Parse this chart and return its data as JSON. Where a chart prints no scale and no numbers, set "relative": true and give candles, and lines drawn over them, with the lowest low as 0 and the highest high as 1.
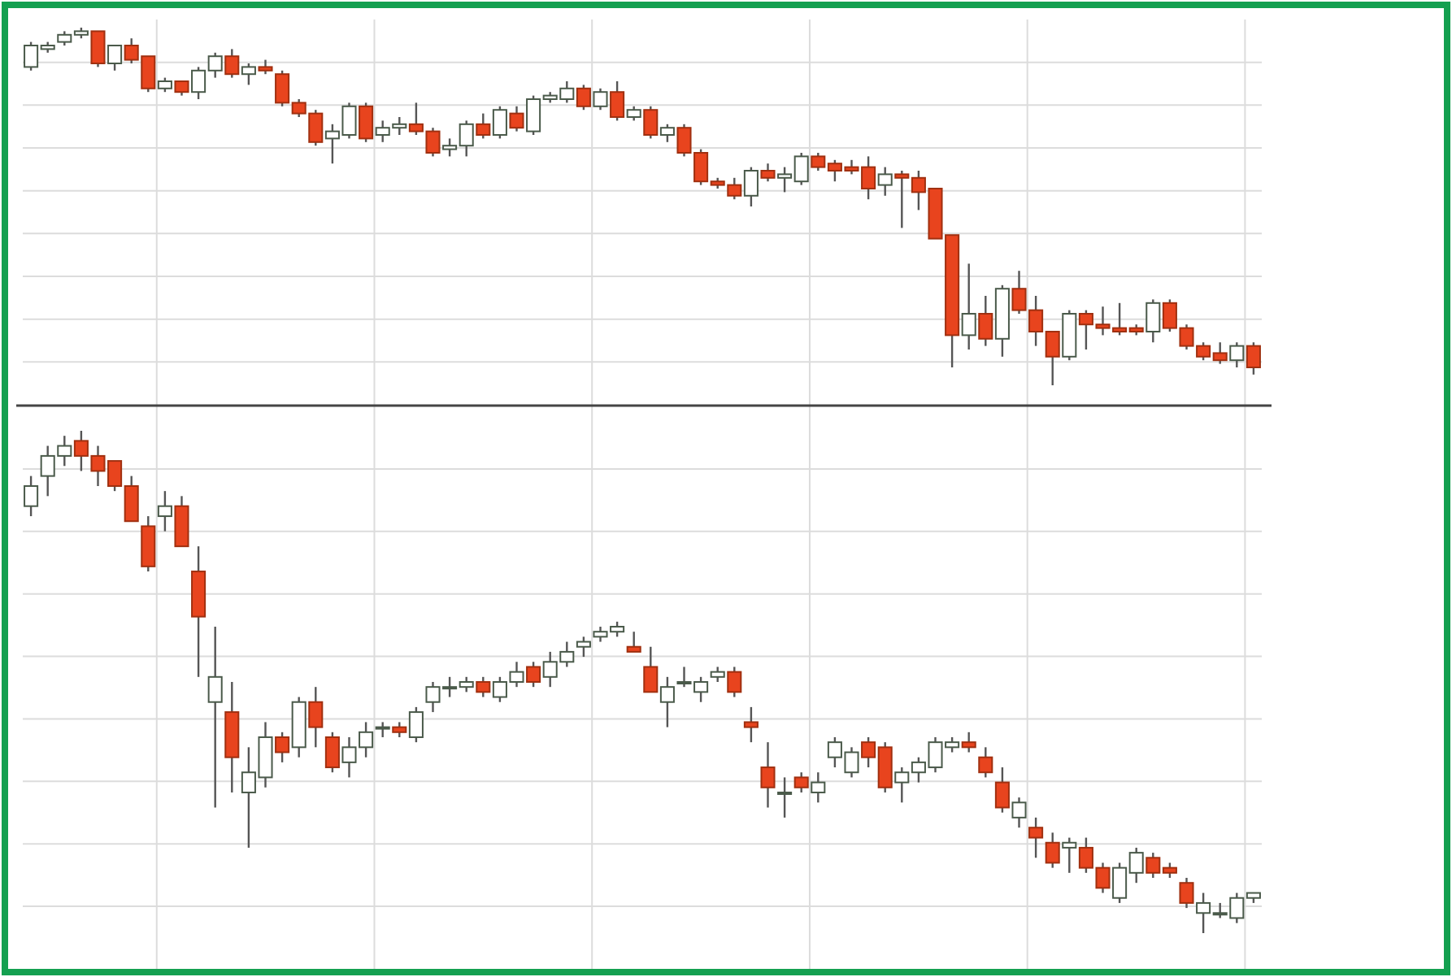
{
  "chart_data": [
    {
      "type": "candlestick",
      "relative": true,
      "grid": true,
      "categories": [
        null,
        null,
        null,
        null,
        null,
        null,
        null,
        null,
        null,
        null,
        null,
        null,
        null,
        null,
        null,
        null,
        null,
        null,
        null,
        null,
        null,
        null,
        null,
        null,
        null,
        null,
        null,
        null,
        null,
        null,
        null,
        null,
        null,
        null,
        null,
        null,
        null,
        null,
        null,
        null,
        null,
        null,
        null,
        null,
        null,
        null,
        null,
        null,
        null,
        null,
        null,
        null,
        null,
        null,
        null,
        null,
        null,
        null,
        null,
        null,
        null,
        null,
        null,
        null,
        null,
        null,
        null,
        null,
        null,
        null,
        null,
        null,
        null,
        null
      ],
      "colors": [
        "#ffffff",
        "#ffffff",
        "#ffffff",
        "#ffffff",
        "#e8441e",
        "#ffffff",
        "#e8441e",
        "#e8441e",
        "#ffffff",
        "#e8441e",
        "#ffffff",
        "#ffffff",
        "#e8441e",
        "#ffffff",
        "#e8441e",
        "#e8441e",
        "#e8441e",
        "#e8441e",
        "#ffffff",
        "#ffffff",
        "#e8441e",
        "#ffffff",
        "#ffffff",
        "#e8441e",
        "#e8441e",
        "#ffffff",
        "#ffffff",
        "#e8441e",
        "#ffffff",
        "#e8441e",
        "#ffffff",
        "#ffffff",
        "#ffffff",
        "#e8441e",
        "#ffffff",
        "#e8441e",
        "#ffffff",
        "#e8441e",
        "#ffffff",
        "#e8441e",
        "#e8441e",
        "#e8441e",
        "#e8441e",
        "#ffffff",
        "#e8441e",
        "#ffffff",
        "#ffffff",
        "#e8441e",
        "#e8441e",
        "#e8441e",
        "#e8441e",
        "#ffffff",
        "#e8441e",
        "#e8441e",
        "#e8441e",
        "#e8441e",
        "#ffffff",
        "#e8441e",
        "#ffffff",
        "#e8441e",
        "#e8441e",
        "#e8441e",
        "#ffffff",
        "#e8441e",
        "#e8441e",
        "#e8441e",
        "#e8441e",
        "#ffffff",
        "#e8441e",
        "#e8441e",
        "#e8441e",
        "#e8441e",
        "#ffffff",
        "#e8441e"
      ],
      "ohlc": [
        [
          0.89,
          0.96,
          0.88,
          0.95
        ],
        [
          0.94,
          0.96,
          0.93,
          0.95
        ],
        [
          0.96,
          0.99,
          0.95,
          0.98
        ],
        [
          0.98,
          1.0,
          0.97,
          0.99
        ],
        [
          0.99,
          0.99,
          0.89,
          0.9
        ],
        [
          0.9,
          0.95,
          0.88,
          0.95
        ],
        [
          0.95,
          0.97,
          0.9,
          0.91
        ],
        [
          0.92,
          0.92,
          0.82,
          0.83
        ],
        [
          0.83,
          0.86,
          0.82,
          0.85
        ],
        [
          0.85,
          0.85,
          0.81,
          0.82
        ],
        [
          0.82,
          0.89,
          0.8,
          0.88
        ],
        [
          0.88,
          0.93,
          0.86,
          0.92
        ],
        [
          0.92,
          0.94,
          0.86,
          0.87
        ],
        [
          0.87,
          0.9,
          0.84,
          0.89
        ],
        [
          0.89,
          0.91,
          0.87,
          0.88
        ],
        [
          0.87,
          0.88,
          0.78,
          0.79
        ],
        [
          0.79,
          0.8,
          0.75,
          0.76
        ],
        [
          0.76,
          0.77,
          0.67,
          0.68
        ],
        [
          0.69,
          0.73,
          0.62,
          0.71
        ],
        [
          0.7,
          0.79,
          0.69,
          0.78
        ],
        [
          0.78,
          0.79,
          0.68,
          0.69
        ],
        [
          0.7,
          0.74,
          0.68,
          0.72
        ],
        [
          0.72,
          0.75,
          0.7,
          0.73
        ],
        [
          0.73,
          0.79,
          0.7,
          0.71
        ],
        [
          0.71,
          0.72,
          0.64,
          0.65
        ],
        [
          0.66,
          0.69,
          0.64,
          0.67
        ],
        [
          0.67,
          0.74,
          0.64,
          0.73
        ],
        [
          0.73,
          0.76,
          0.69,
          0.7
        ],
        [
          0.7,
          0.78,
          0.69,
          0.77
        ],
        [
          0.76,
          0.78,
          0.71,
          0.72
        ],
        [
          0.71,
          0.81,
          0.7,
          0.8
        ],
        [
          0.8,
          0.82,
          0.79,
          0.81
        ],
        [
          0.8,
          0.85,
          0.79,
          0.83
        ],
        [
          0.83,
          0.84,
          0.77,
          0.78
        ],
        [
          0.78,
          0.83,
          0.77,
          0.82
        ],
        [
          0.82,
          0.85,
          0.74,
          0.75
        ],
        [
          0.75,
          0.78,
          0.74,
          0.77
        ],
        [
          0.77,
          0.78,
          0.69,
          0.7
        ],
        [
          0.7,
          0.73,
          0.68,
          0.72
        ],
        [
          0.72,
          0.73,
          0.64,
          0.65
        ],
        [
          0.65,
          0.66,
          0.56,
          0.57
        ],
        [
          0.57,
          0.58,
          0.55,
          0.56
        ],
        [
          0.56,
          0.58,
          0.52,
          0.53
        ],
        [
          0.53,
          0.61,
          0.5,
          0.6
        ],
        [
          0.6,
          0.62,
          0.57,
          0.58
        ],
        [
          0.58,
          0.61,
          0.54,
          0.59
        ],
        [
          0.57,
          0.65,
          0.56,
          0.64
        ],
        [
          0.64,
          0.65,
          0.6,
          0.61
        ],
        [
          0.62,
          0.63,
          0.57,
          0.6
        ],
        [
          0.61,
          0.63,
          0.59,
          0.6
        ],
        [
          0.61,
          0.64,
          0.52,
          0.55
        ],
        [
          0.56,
          0.61,
          0.53,
          0.59
        ],
        [
          0.59,
          0.6,
          0.44,
          0.58
        ],
        [
          0.58,
          0.6,
          0.49,
          0.54
        ],
        [
          0.55,
          0.55,
          0.41,
          0.41
        ],
        [
          0.42,
          0.42,
          0.05,
          0.14
        ],
        [
          0.14,
          0.34,
          0.1,
          0.2
        ],
        [
          0.2,
          0.25,
          0.11,
          0.13
        ],
        [
          0.13,
          0.28,
          0.08,
          0.27
        ],
        [
          0.27,
          0.32,
          0.2,
          0.21
        ],
        [
          0.21,
          0.25,
          0.11,
          0.15
        ],
        [
          0.15,
          0.15,
          0.0,
          0.08
        ],
        [
          0.08,
          0.21,
          0.07,
          0.2
        ],
        [
          0.2,
          0.21,
          0.1,
          0.17
        ],
        [
          0.17,
          0.22,
          0.14,
          0.16
        ],
        [
          0.16,
          0.23,
          0.14,
          0.15
        ],
        [
          0.16,
          0.17,
          0.14,
          0.15
        ],
        [
          0.15,
          0.24,
          0.12,
          0.23
        ],
        [
          0.23,
          0.24,
          0.15,
          0.16
        ],
        [
          0.16,
          0.17,
          0.1,
          0.11
        ],
        [
          0.11,
          0.12,
          0.07,
          0.08
        ],
        [
          0.09,
          0.12,
          0.06,
          0.07
        ],
        [
          0.07,
          0.12,
          0.05,
          0.11
        ],
        [
          0.11,
          0.12,
          0.03,
          0.05
        ]
      ]
    },
    {
      "type": "candlestick",
      "relative": true,
      "grid": true,
      "categories": [
        null,
        null,
        null,
        null,
        null,
        null,
        null,
        null,
        null,
        null,
        null,
        null,
        null,
        null,
        null,
        null,
        null,
        null,
        null,
        null,
        null,
        null,
        null,
        null,
        null,
        null,
        null,
        null,
        null,
        null,
        null,
        null,
        null,
        null,
        null,
        null,
        null,
        null,
        null,
        null,
        null,
        null,
        null,
        null,
        null,
        null,
        null,
        null,
        null,
        null,
        null,
        null,
        null,
        null,
        null,
        null,
        null,
        null,
        null,
        null,
        null,
        null,
        null,
        null,
        null,
        null,
        null,
        null,
        null,
        null,
        null,
        null,
        null,
        null
      ],
      "colors": [
        "#ffffff",
        "#ffffff",
        "#ffffff",
        "#e8441e",
        "#e8441e",
        "#e8441e",
        "#e8441e",
        "#e8441e",
        "#ffffff",
        "#e8441e",
        "#e8441e",
        "#ffffff",
        "#e8441e",
        "#ffffff",
        "#ffffff",
        "#e8441e",
        "#ffffff",
        "#e8441e",
        "#e8441e",
        "#ffffff",
        "#ffffff",
        "#ffffff",
        "#e8441e",
        "#ffffff",
        "#ffffff",
        "#ffffff",
        "#ffffff",
        "#e8441e",
        "#ffffff",
        "#ffffff",
        "#e8441e",
        "#ffffff",
        "#ffffff",
        "#ffffff",
        "#ffffff",
        "#ffffff",
        "#e8441e",
        "#e8441e",
        "#ffffff",
        "#ffffff",
        "#ffffff",
        "#ffffff",
        "#e8441e",
        "#e8441e",
        "#e8441e",
        "#ffffff",
        "#e8441e",
        "#ffffff",
        "#ffffff",
        "#ffffff",
        "#e8441e",
        "#e8441e",
        "#ffffff",
        "#ffffff",
        "#ffffff",
        "#ffffff",
        "#e8441e",
        "#e8441e",
        "#e8441e",
        "#ffffff",
        "#e8441e",
        "#e8441e",
        "#ffffff",
        "#e8441e",
        "#e8441e",
        "#ffffff",
        "#ffffff",
        "#e8441e",
        "#e8441e",
        "#e8441e",
        "#ffffff",
        "#ffffff",
        "#ffffff",
        "#ffffff"
      ],
      "ohlc": [
        [
          0.85,
          0.91,
          0.83,
          0.89
        ],
        [
          0.91,
          0.97,
          0.87,
          0.95
        ],
        [
          0.95,
          0.99,
          0.93,
          0.97
        ],
        [
          0.98,
          1.0,
          0.92,
          0.95
        ],
        [
          0.95,
          0.97,
          0.89,
          0.92
        ],
        [
          0.94,
          0.94,
          0.88,
          0.89
        ],
        [
          0.89,
          0.91,
          0.82,
          0.82
        ],
        [
          0.81,
          0.83,
          0.72,
          0.73
        ],
        [
          0.83,
          0.88,
          0.8,
          0.85
        ],
        [
          0.85,
          0.87,
          0.77,
          0.77
        ],
        [
          0.72,
          0.77,
          0.51,
          0.63
        ],
        [
          0.46,
          0.61,
          0.25,
          0.51
        ],
        [
          0.44,
          0.5,
          0.28,
          0.35
        ],
        [
          0.28,
          0.37,
          0.17,
          0.32
        ],
        [
          0.31,
          0.42,
          0.29,
          0.39
        ],
        [
          0.39,
          0.4,
          0.34,
          0.36
        ],
        [
          0.37,
          0.47,
          0.35,
          0.46
        ],
        [
          0.46,
          0.49,
          0.37,
          0.41
        ],
        [
          0.39,
          0.4,
          0.32,
          0.33
        ],
        [
          0.34,
          0.39,
          0.31,
          0.37
        ],
        [
          0.37,
          0.42,
          0.35,
          0.4
        ],
        [
          0.41,
          0.42,
          0.39,
          0.41
        ],
        [
          0.41,
          0.42,
          0.39,
          0.4
        ],
        [
          0.39,
          0.45,
          0.38,
          0.44
        ],
        [
          0.46,
          0.5,
          0.44,
          0.49
        ],
        [
          0.49,
          0.51,
          0.47,
          0.49
        ],
        [
          0.49,
          0.51,
          0.48,
          0.5
        ],
        [
          0.5,
          0.51,
          0.47,
          0.48
        ],
        [
          0.47,
          0.51,
          0.46,
          0.5
        ],
        [
          0.5,
          0.54,
          0.49,
          0.52
        ],
        [
          0.53,
          0.54,
          0.49,
          0.5
        ],
        [
          0.51,
          0.56,
          0.49,
          0.54
        ],
        [
          0.54,
          0.58,
          0.53,
          0.56
        ],
        [
          0.57,
          0.59,
          0.55,
          0.58
        ],
        [
          0.59,
          0.61,
          0.58,
          0.6
        ],
        [
          0.6,
          0.62,
          0.59,
          0.61
        ],
        [
          0.57,
          0.6,
          0.56,
          0.56
        ],
        [
          0.53,
          0.57,
          0.48,
          0.48
        ],
        [
          0.46,
          0.51,
          0.41,
          0.49
        ],
        [
          0.5,
          0.53,
          0.49,
          0.5
        ],
        [
          0.48,
          0.51,
          0.46,
          0.5
        ],
        [
          0.51,
          0.53,
          0.5,
          0.52
        ],
        [
          0.52,
          0.53,
          0.47,
          0.48
        ],
        [
          0.42,
          0.45,
          0.38,
          0.41
        ],
        [
          0.33,
          0.38,
          0.25,
          0.29
        ],
        [
          0.28,
          0.31,
          0.23,
          0.28
        ],
        [
          0.31,
          0.32,
          0.28,
          0.29
        ],
        [
          0.28,
          0.32,
          0.26,
          0.3
        ],
        [
          0.35,
          0.39,
          0.33,
          0.38
        ],
        [
          0.32,
          0.37,
          0.31,
          0.36
        ],
        [
          0.38,
          0.39,
          0.33,
          0.35
        ],
        [
          0.37,
          0.38,
          0.28,
          0.29
        ],
        [
          0.3,
          0.33,
          0.26,
          0.32
        ],
        [
          0.32,
          0.35,
          0.3,
          0.34
        ],
        [
          0.33,
          0.39,
          0.32,
          0.38
        ],
        [
          0.37,
          0.39,
          0.36,
          0.38
        ],
        [
          0.38,
          0.4,
          0.36,
          0.37
        ],
        [
          0.35,
          0.37,
          0.31,
          0.32
        ],
        [
          0.3,
          0.33,
          0.24,
          0.25
        ],
        [
          0.23,
          0.27,
          0.21,
          0.26
        ],
        [
          0.21,
          0.23,
          0.15,
          0.19
        ],
        [
          0.18,
          0.2,
          0.13,
          0.14
        ],
        [
          0.17,
          0.19,
          0.12,
          0.18
        ],
        [
          0.17,
          0.19,
          0.12,
          0.13
        ],
        [
          0.13,
          0.14,
          0.08,
          0.09
        ],
        [
          0.07,
          0.14,
          0.06,
          0.13
        ],
        [
          0.12,
          0.17,
          0.1,
          0.16
        ],
        [
          0.15,
          0.16,
          0.11,
          0.12
        ],
        [
          0.13,
          0.14,
          0.11,
          0.12
        ],
        [
          0.1,
          0.11,
          0.05,
          0.06
        ],
        [
          0.04,
          0.08,
          0.0,
          0.06
        ],
        [
          0.04,
          0.06,
          0.03,
          0.04
        ],
        [
          0.03,
          0.08,
          0.02,
          0.07
        ],
        [
          0.07,
          0.08,
          0.06,
          0.08
        ]
      ]
    }
  ]
}
